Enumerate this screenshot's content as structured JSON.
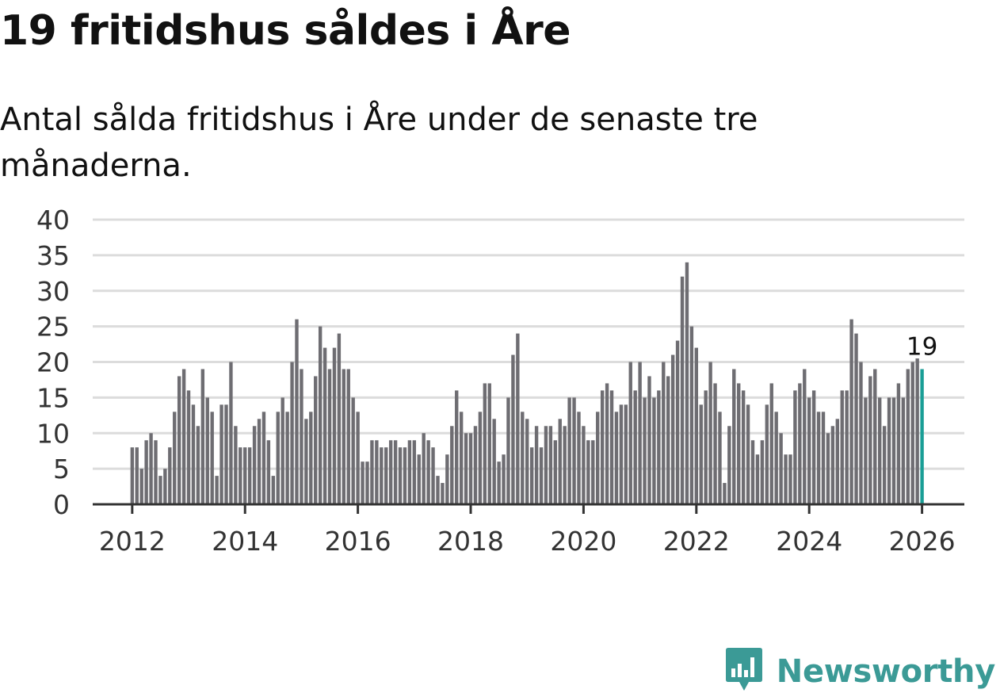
{
  "header": {
    "title": "19 fritidshus såldes i Åre",
    "subtitle": "Antal sålda fritidshus i Åre under de senaste tre månaderna."
  },
  "brand": {
    "name": "Newsworthy",
    "icon": "newsworthy-logo-icon",
    "color": "#3b9a96"
  },
  "colors": {
    "bar": "#6e6d72",
    "highlight": "#1a9e96",
    "grid": "#dcdcdc",
    "axis": "#333333"
  },
  "chart_data": {
    "type": "bar",
    "title": "19 fritidshus såldes i Åre",
    "subtitle": "Antal sålda fritidshus i Åre under de senaste tre månaderna.",
    "xlabel": "",
    "ylabel": "",
    "x_start": "2012-01",
    "frequency": "monthly",
    "ylim": [
      0,
      40
    ],
    "yticks": [
      0,
      5,
      10,
      15,
      20,
      25,
      30,
      35,
      40
    ],
    "xlim": [
      2011.3,
      2026.75
    ],
    "xticks": [
      2012,
      2014,
      2016,
      2018,
      2020,
      2022,
      2024,
      2026
    ],
    "grid": true,
    "last_value_label": "19",
    "values": [
      8,
      8,
      5,
      9,
      10,
      9,
      4,
      5,
      8,
      13,
      18,
      19,
      16,
      14,
      11,
      19,
      15,
      13,
      4,
      14,
      14,
      20,
      11,
      8,
      8,
      8,
      11,
      12,
      13,
      9,
      4,
      13,
      15,
      13,
      20,
      26,
      19,
      12,
      13,
      18,
      25,
      22,
      19,
      22,
      24,
      19,
      19,
      15,
      13,
      6,
      6,
      9,
      9,
      8,
      8,
      9,
      9,
      8,
      8,
      9,
      9,
      7,
      10,
      9,
      8,
      4,
      3,
      7,
      11,
      16,
      13,
      10,
      10,
      11,
      13,
      17,
      17,
      12,
      6,
      7,
      15,
      21,
      24,
      13,
      12,
      8,
      11,
      8,
      11,
      11,
      9,
      12,
      11,
      15,
      15,
      13,
      11,
      9,
      9,
      13,
      16,
      17,
      16,
      13,
      14,
      14,
      20,
      16,
      20,
      15,
      18,
      15,
      16,
      20,
      18,
      21,
      23,
      32,
      34,
      25,
      22,
      14,
      16,
      20,
      17,
      13,
      3,
      11,
      19,
      17,
      16,
      14,
      9,
      7,
      9,
      14,
      17,
      13,
      10,
      7,
      7,
      16,
      17,
      19,
      15,
      16,
      13,
      13,
      10,
      11,
      12,
      16,
      16,
      26,
      24,
      20,
      15,
      18,
      19,
      15,
      11,
      15,
      15,
      17,
      15,
      19,
      20,
      20.5,
      19
    ]
  }
}
